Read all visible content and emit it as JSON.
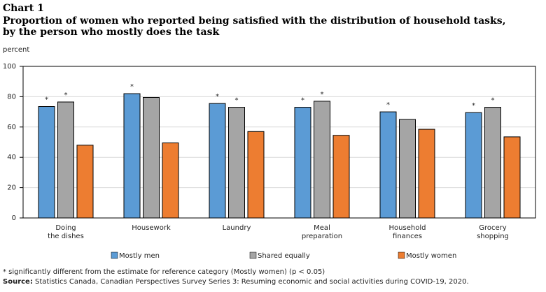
{
  "chart_data": {
    "type": "bar",
    "chart_label": "Chart 1",
    "title": [
      "Proportion of women who reported being satisfied with the distribution of household tasks,",
      "by the person who mostly does the task"
    ],
    "y_label": "percent",
    "categories": [
      [
        "Doing",
        "the dishes"
      ],
      [
        "Housework"
      ],
      [
        "Laundry"
      ],
      [
        "Meal",
        "preparation"
      ],
      [
        "Household",
        "finances"
      ],
      [
        "Grocery",
        "shopping"
      ]
    ],
    "series": [
      {
        "name": "Mostly men",
        "color": "#5b9bd5",
        "values": [
          73.5,
          82,
          75.5,
          73,
          70,
          69.5
        ],
        "markers": [
          "*",
          "*",
          "*",
          "*",
          "*",
          "*"
        ]
      },
      {
        "name": "Shared equally",
        "color": "#a5a5a5",
        "values": [
          76.5,
          79.5,
          73,
          77,
          65,
          73
        ],
        "markers": [
          "*",
          null,
          "*",
          "*",
          null,
          "*"
        ]
      },
      {
        "name": "Mostly women",
        "color": "#ed7d31",
        "values": [
          48,
          49.5,
          57,
          54.5,
          58.5,
          53.5
        ]
      }
    ],
    "ylim": [
      0,
      100
    ],
    "yticks": [
      0,
      20,
      40,
      60,
      80,
      100
    ],
    "grid": true,
    "footnote": "* significantly different from the estimate for reference category (Mostly women) (p < 0.05)",
    "source_label": "Source:",
    "source": "Statistics Canada, Canadian Perspectives Survey Series 3: Resuming economic and social activities during COVID-19, 2020."
  }
}
